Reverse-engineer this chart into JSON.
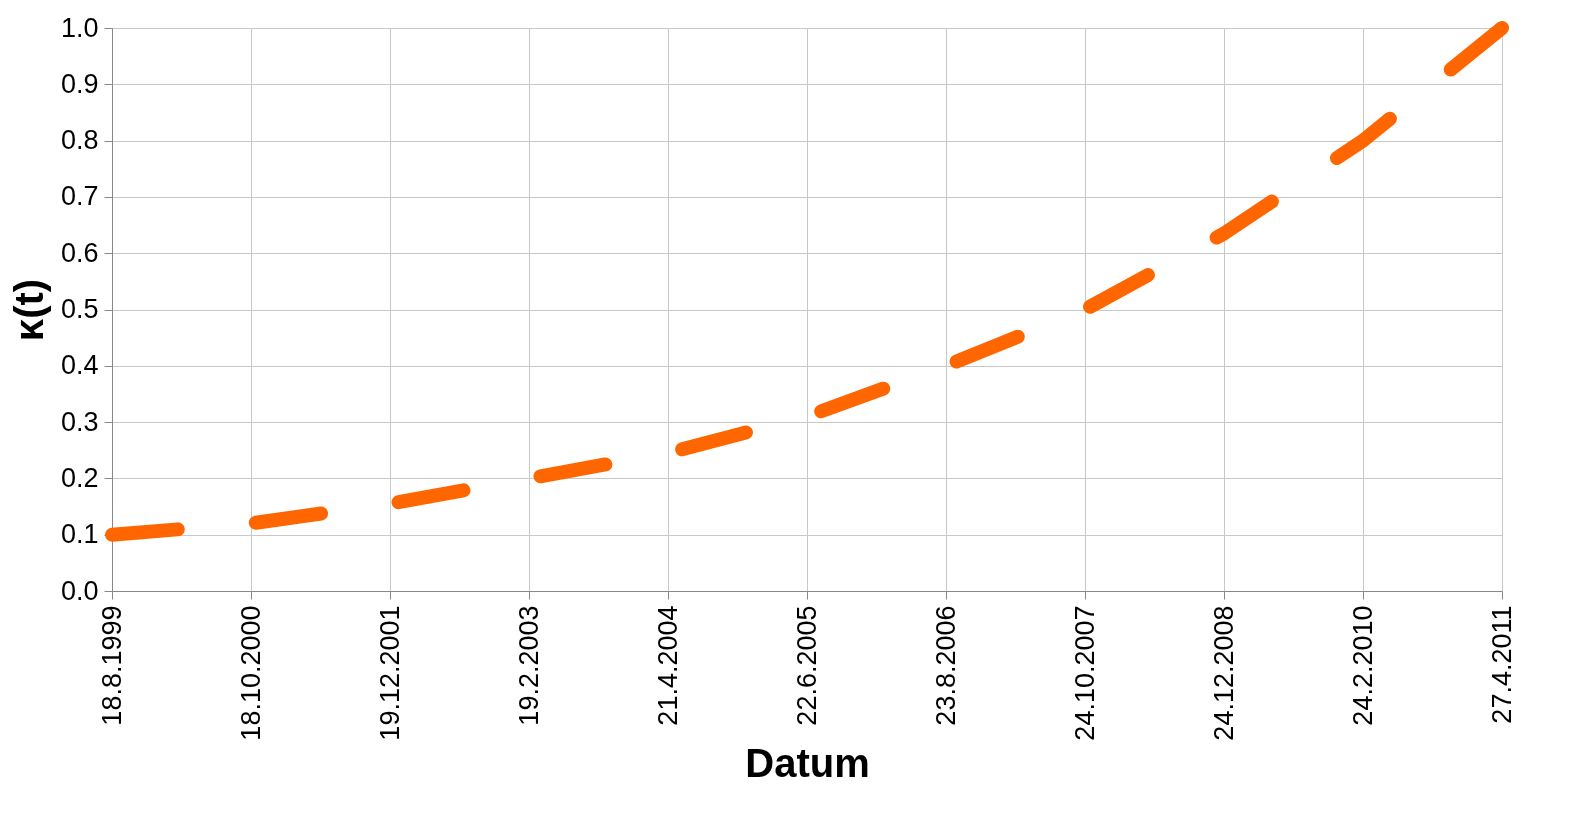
{
  "chart_data": {
    "type": "line",
    "xlabel": "Datum",
    "ylabel": "κ(t)",
    "x": [
      "1999-08-18",
      "2000-10-18",
      "2001-12-19",
      "2003-02-19",
      "2004-04-21",
      "2005-06-22",
      "2006-08-23",
      "2007-10-24",
      "2008-12-24",
      "2010-02-24",
      "2011-04-27"
    ],
    "series": [
      {
        "color": "#ff6600",
        "values": [
          0.1,
          0.12,
          0.155,
          0.2,
          0.245,
          0.31,
          0.4,
          0.5,
          0.635,
          0.8,
          1.0
        ]
      }
    ],
    "xlim": [
      "1999-08-18",
      "2011-04-27"
    ],
    "xticks": [
      {
        "value": "1999-08-18",
        "label": "18.8.1999"
      },
      {
        "value": "2000-10-18",
        "label": "18.10.2000"
      },
      {
        "value": "2001-12-19",
        "label": "19.12.2001"
      },
      {
        "value": "2003-02-19",
        "label": "19.2.2003"
      },
      {
        "value": "2004-04-21",
        "label": "21.4.2004"
      },
      {
        "value": "2005-06-22",
        "label": "22.6.2005"
      },
      {
        "value": "2006-08-23",
        "label": "23.8.2006"
      },
      {
        "value": "2007-10-24",
        "label": "24.10.2007"
      },
      {
        "value": "2008-12-24",
        "label": "24.12.2008"
      },
      {
        "value": "2010-02-24",
        "label": "24.2.2010"
      },
      {
        "value": "2011-04-27",
        "label": "27.4.2011"
      }
    ],
    "ylim": [
      0,
      1
    ],
    "yticks": [
      {
        "value": 0,
        "label": "0.0"
      },
      0.1,
      0.2,
      0.3,
      0.4,
      0.5,
      0.6,
      0.7,
      0.8,
      0.9,
      {
        "value": 1,
        "label": "1.0"
      }
    ],
    "grid": true,
    "marker": "none",
    "line_style": "dashed"
  }
}
